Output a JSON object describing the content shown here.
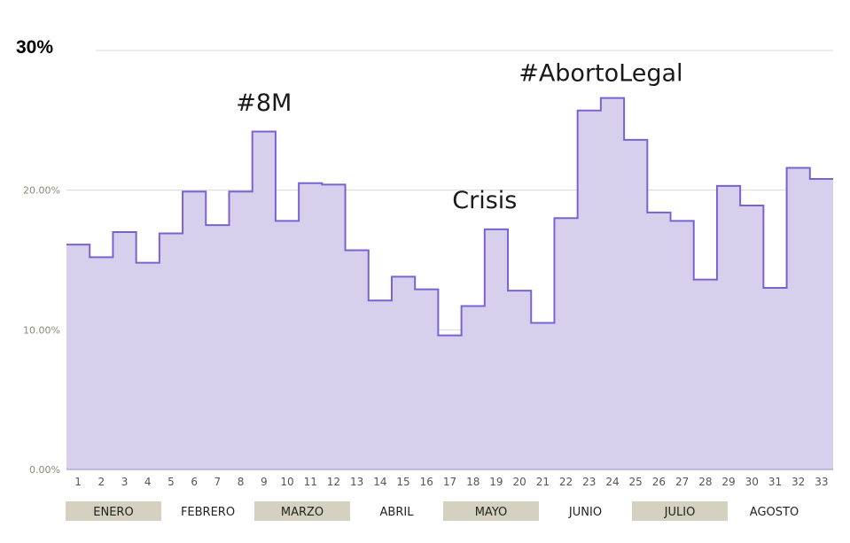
{
  "chart_data": {
    "type": "area",
    "title": "",
    "xlabel": "",
    "ylabel": "",
    "top_label": "30%",
    "ylim": [
      0,
      30
    ],
    "yticks": [
      {
        "value": 0,
        "label": "0.00%"
      },
      {
        "value": 10,
        "label": "10.00%"
      },
      {
        "value": 20,
        "label": "20.00%"
      }
    ],
    "grid": true,
    "step": true,
    "x": [
      1,
      2,
      3,
      4,
      5,
      6,
      7,
      8,
      9,
      10,
      11,
      12,
      13,
      14,
      15,
      16,
      17,
      18,
      19,
      20,
      21,
      22,
      23,
      24,
      25,
      26,
      27,
      28,
      29,
      30,
      31,
      32,
      33
    ],
    "series": [
      {
        "values": [
          16.1,
          15.2,
          17.0,
          14.8,
          16.9,
          19.9,
          17.5,
          19.9,
          24.2,
          17.8,
          20.5,
          20.4,
          15.7,
          12.1,
          13.8,
          12.9,
          9.6,
          11.7,
          17.2,
          12.8,
          10.5,
          18.0,
          25.7,
          26.6,
          23.6,
          18.4,
          17.8,
          13.6,
          20.3,
          18.9,
          13.0,
          21.6,
          20.8
        ],
        "color": "#7b63cf",
        "fill": "#d6d0ec"
      }
    ],
    "annotations": [
      {
        "text": "#8M",
        "x": 9,
        "y": 25.7
      },
      {
        "text": "Crisis",
        "x": 18.5,
        "y": 18.7
      },
      {
        "text": "#AbortoLegal",
        "x": 23.5,
        "y": 27.8
      }
    ],
    "months": [
      {
        "label": "ENERO",
        "start": 1,
        "end": 4,
        "shaded": true
      },
      {
        "label": "FEBRERO",
        "start": 5,
        "end": 8,
        "shaded": false
      },
      {
        "label": "MARZO",
        "start": 9,
        "end": 12,
        "shaded": true
      },
      {
        "label": "ABRIL",
        "start": 13,
        "end": 16,
        "shaded": false
      },
      {
        "label": "MAYO",
        "start": 17,
        "end": 20,
        "shaded": true
      },
      {
        "label": "JUNIO",
        "start": 21,
        "end": 24,
        "shaded": false
      },
      {
        "label": "JULIO",
        "start": 25,
        "end": 28,
        "shaded": true
      },
      {
        "label": "AGOSTO",
        "start": 29,
        "end": 33,
        "shaded": false
      }
    ],
    "colors": {
      "month_band": "#d4d1c0",
      "gridline": "#d8d8d8",
      "baseline": "#9a8fc4"
    }
  }
}
